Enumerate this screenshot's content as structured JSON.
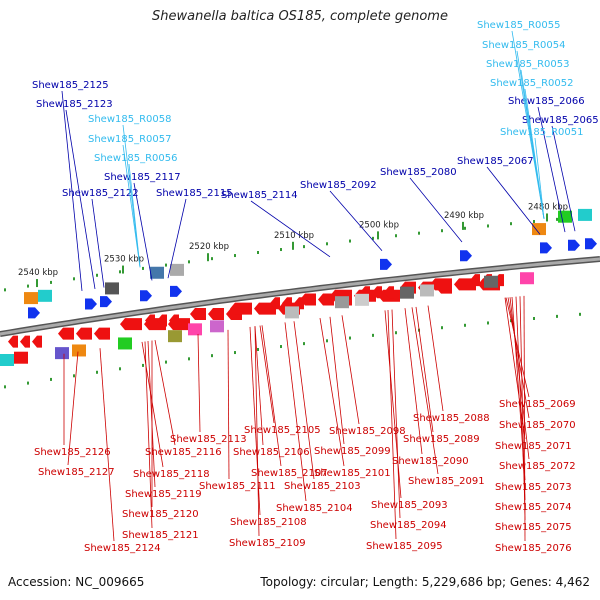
{
  "title": "Shewanella baltica OS185, complete genome",
  "footer": {
    "accession": "Accession: NC_009665",
    "summary": "Topology: circular; Length: 5,229,686 bp; Genes: 4,462"
  },
  "colors": {
    "forward_label": "#0000aa",
    "rna_label": "#33bbee",
    "reverse_label": "#cc0000",
    "backbone": "#888888",
    "tick": "#339933"
  },
  "scale_labels": [
    "2540 kbp",
    "2530 kbp",
    "2520 kbp",
    "2510 kbp",
    "2500 kbp",
    "2490 kbp",
    "2480 kbp"
  ],
  "forward_genes": [
    "Shew185_2125",
    "Shew185_2123",
    "Shew185_2122",
    "Shew185_2117",
    "Shew185_2115",
    "Shew185_2114",
    "Shew185_2092",
    "Shew185_2080",
    "Shew185_2067",
    "Shew185_2066",
    "Shew185_2065"
  ],
  "rna_genes": [
    "Shew185_R0055",
    "Shew185_R0054",
    "Shew185_R0053",
    "Shew185_R0052",
    "Shew185_R0051",
    "Shew185_R0058",
    "Shew185_R0057",
    "Shew185_R0056"
  ],
  "reverse_genes": [
    "Shew185_2126",
    "Shew185_2127",
    "Shew185_2118",
    "Shew185_2119",
    "Shew185_2120",
    "Shew185_2121",
    "Shew185_2124",
    "Shew185_2116",
    "Shew185_2113",
    "Shew185_2111",
    "Shew185_2108",
    "Shew185_2109",
    "Shew185_2105",
    "Shew185_2106",
    "Shew185_2107",
    "Shew185_2104",
    "Shew185_2103",
    "Shew185_2101",
    "Shew185_2098",
    "Shew185_2099",
    "Shew185_2094",
    "Shew185_2095",
    "Shew185_2093",
    "Shew185_2091",
    "Shew185_2090",
    "Shew185_2089",
    "Shew185_2088",
    "Shew185_2069",
    "Shew185_2070",
    "Shew185_2071",
    "Shew185_2072",
    "Shew185_2073",
    "Shew185_2074",
    "Shew185_2075",
    "Shew185_2076"
  ]
}
